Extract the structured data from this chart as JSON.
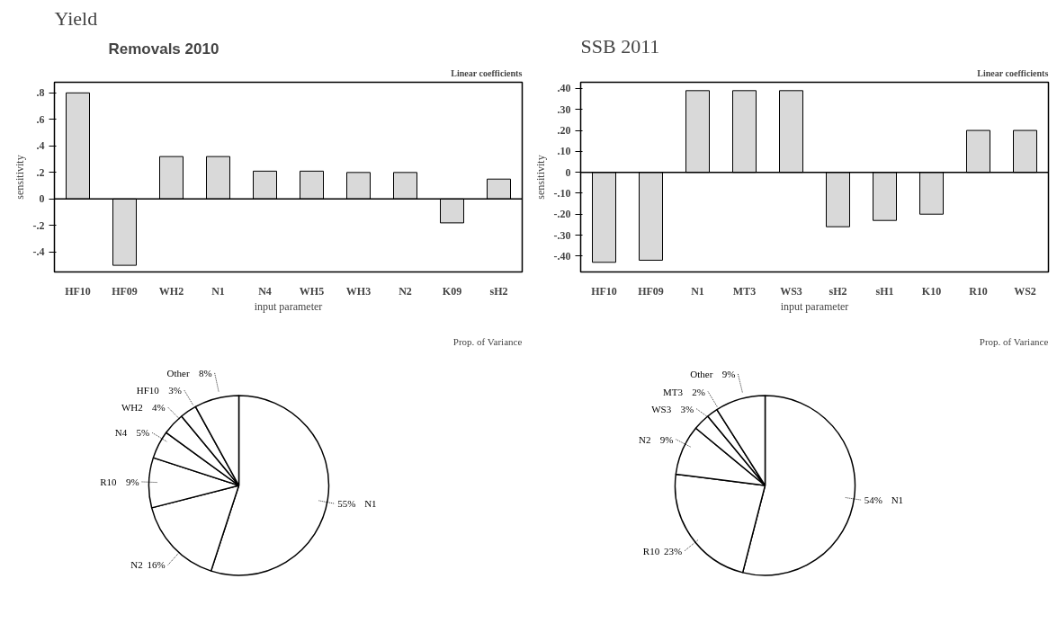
{
  "chart_data": [
    {
      "type": "bar",
      "title": "Yield",
      "subtitle": "Removals 2010",
      "annotations": [
        "Linear coefficients"
      ],
      "xlabel": "input parameter",
      "ylabel": "sensitivity",
      "categories": [
        "HF10",
        "HF09",
        "WH2",
        "N1",
        "N4",
        "WH5",
        "WH3",
        "N2",
        "K09",
        "sH2"
      ],
      "values": [
        0.8,
        -0.5,
        0.32,
        0.32,
        0.21,
        0.21,
        0.2,
        0.2,
        -0.18,
        0.15
      ],
      "color": "#d9d9d9",
      "ylim": [
        -0.55,
        0.88
      ],
      "yticks": [
        {
          "value": -0.4,
          "label": "-.4"
        },
        {
          "value": -0.2,
          "label": "-.2"
        },
        0,
        {
          "value": 0.2,
          "label": ".2"
        },
        {
          "value": 0.4,
          "label": ".4"
        },
        {
          "value": 0.6,
          "label": ".6"
        },
        {
          "value": 0.8,
          "label": ".8"
        }
      ],
      "ref_lines": [
        {
          "axis": "y",
          "value": 0,
          "color": "#000000"
        }
      ],
      "grid": false
    },
    {
      "type": "bar",
      "title": "SSB  2011",
      "annotations": [
        "Linear coefficients"
      ],
      "xlabel": "input parameter",
      "ylabel": "sensitivity",
      "categories": [
        "HF10",
        "HF09",
        "N1",
        "MT3",
        "WS3",
        "sH2",
        "sH1",
        "K10",
        "R10",
        "WS2"
      ],
      "values": [
        -0.43,
        -0.42,
        0.39,
        0.39,
        0.39,
        -0.26,
        -0.23,
        -0.2,
        0.2,
        0.2
      ],
      "color": "#d9d9d9",
      "ylim": [
        -0.476,
        0.43
      ],
      "yticks": [
        {
          "value": -0.4,
          "label": "-.40"
        },
        {
          "value": -0.3,
          "label": "-.30"
        },
        {
          "value": -0.2,
          "label": "-.20"
        },
        {
          "value": -0.1,
          "label": "-.10"
        },
        0,
        {
          "value": 0.1,
          "label": ".10"
        },
        {
          "value": 0.2,
          "label": ".20"
        },
        {
          "value": 0.3,
          "label": ".30"
        },
        {
          "value": 0.4,
          "label": ".40"
        }
      ],
      "ref_lines": [
        {
          "axis": "y",
          "value": 0,
          "color": "#000000"
        }
      ],
      "grid": false
    },
    {
      "type": "pie",
      "title": "Prop. of Variance",
      "categories": [
        "N1",
        "N2",
        "R10",
        "N4",
        "WH2",
        "HF10",
        "Other"
      ],
      "values": [
        55,
        16,
        9,
        5,
        4,
        3,
        8
      ],
      "value_labels": [
        "55%",
        "16%",
        "9%",
        "5%",
        "4%",
        "3%",
        "8%"
      ],
      "colors": [
        "#ffffff",
        "#ffffff",
        "#ffffff",
        "#ffffff",
        "#ffffff",
        "#ffffff",
        "#ffffff"
      ]
    },
    {
      "type": "pie",
      "title": "Prop. of Variance",
      "categories": [
        "N1",
        "R10",
        "N2",
        "WS3",
        "MT3",
        "Other"
      ],
      "values": [
        54,
        23,
        9,
        3,
        2,
        9
      ],
      "value_labels": [
        "54%",
        "23%",
        "9%",
        "3%",
        "2%",
        "9%"
      ],
      "colors": [
        "#ffffff",
        "#ffffff",
        "#ffffff",
        "#ffffff",
        "#ffffff",
        "#ffffff"
      ]
    }
  ]
}
